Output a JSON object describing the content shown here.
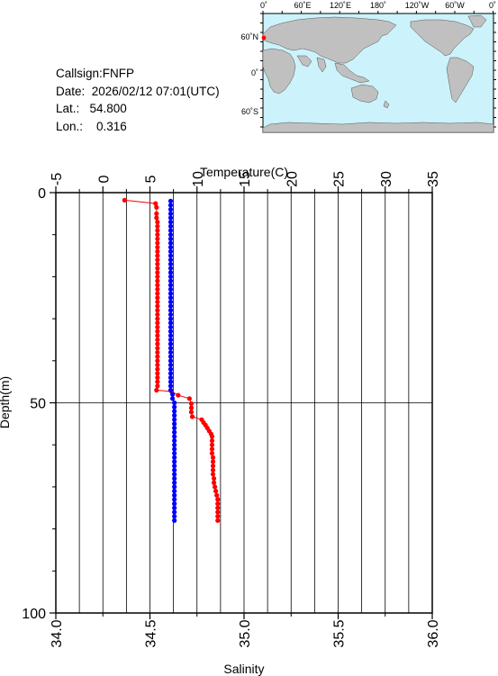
{
  "station": {
    "callsign_line": "Callsign:FNFP",
    "date_line": "Date:  2026/02/12 07:01(UTC)",
    "lat_line": "Lat.:   54.800",
    "lon_line": "Lon.:    0.316"
  },
  "map": {
    "lon_labels": [
      "0˚",
      "60˚E",
      "120˚E",
      "180˚",
      "120˚W",
      "60˚W",
      "0˚"
    ],
    "lat_labels": [
      "60˚N",
      "0˚",
      "60˚S"
    ],
    "ocean_color": "#ccf2fb",
    "land_color": "#c0c0c0",
    "marker_color": "#ff0000"
  },
  "chart_data": {
    "type": "line",
    "top_axis_label": "Temperature(C)",
    "bottom_axis_label": "Salinity",
    "left_axis_label": "Depth(m)",
    "temperature_ticks": [
      "-5",
      "0",
      "5",
      "10",
      "15",
      "20",
      "25",
      "30",
      "35"
    ],
    "salinity_ticks": [
      "34.0",
      "34.5",
      "35.0",
      "35.5",
      "36.0"
    ],
    "depth_ticks": [
      "0",
      "50",
      "100"
    ],
    "temperature_range": [
      -5,
      35
    ],
    "salinity_range": [
      34.0,
      36.0
    ],
    "depth_range": [
      0,
      100
    ],
    "series": [
      {
        "color": "#ff0000",
        "x_axis": "temperature",
        "points": [
          [
            2.3,
            1.8
          ],
          [
            5.6,
            2.6
          ],
          [
            5.7,
            3.5
          ],
          [
            5.7,
            5
          ],
          [
            5.7,
            6
          ],
          [
            5.8,
            7
          ],
          [
            5.8,
            8
          ],
          [
            5.8,
            9
          ],
          [
            5.8,
            10
          ],
          [
            5.8,
            11
          ],
          [
            5.8,
            12
          ],
          [
            5.8,
            13
          ],
          [
            5.8,
            14
          ],
          [
            5.8,
            15
          ],
          [
            5.8,
            16
          ],
          [
            5.8,
            17
          ],
          [
            5.8,
            18
          ],
          [
            5.8,
            19
          ],
          [
            5.8,
            20
          ],
          [
            5.8,
            21
          ],
          [
            5.8,
            22
          ],
          [
            5.8,
            23
          ],
          [
            5.8,
            24
          ],
          [
            5.8,
            25
          ],
          [
            5.8,
            26
          ],
          [
            5.8,
            27
          ],
          [
            5.8,
            28
          ],
          [
            5.8,
            29
          ],
          [
            5.8,
            30
          ],
          [
            5.8,
            31
          ],
          [
            5.8,
            32
          ],
          [
            5.8,
            33
          ],
          [
            5.8,
            34
          ],
          [
            5.8,
            35
          ],
          [
            5.8,
            36
          ],
          [
            5.8,
            37
          ],
          [
            5.8,
            38
          ],
          [
            5.8,
            39
          ],
          [
            5.8,
            40
          ],
          [
            5.8,
            41
          ],
          [
            5.8,
            42
          ],
          [
            5.8,
            43
          ],
          [
            5.8,
            44
          ],
          [
            5.8,
            45
          ],
          [
            5.8,
            46
          ],
          [
            5.7,
            47
          ],
          [
            7.3,
            47.3
          ],
          [
            8.0,
            48.2
          ],
          [
            9.2,
            49.0
          ],
          [
            9.4,
            50.2
          ],
          [
            9.4,
            51.2
          ],
          [
            9.4,
            52.2
          ],
          [
            9.5,
            53.3
          ],
          [
            10.5,
            54.0
          ],
          [
            10.7,
            54.7
          ],
          [
            10.9,
            55.3
          ],
          [
            11.1,
            56.0
          ],
          [
            11.3,
            56.7
          ],
          [
            11.5,
            57.4
          ],
          [
            11.6,
            58.0
          ],
          [
            11.6,
            59.0
          ],
          [
            11.6,
            60.0
          ],
          [
            11.6,
            61.0
          ],
          [
            11.6,
            62.0
          ],
          [
            11.7,
            63.0
          ],
          [
            11.7,
            64.0
          ],
          [
            11.7,
            65.0
          ],
          [
            11.7,
            66.0
          ],
          [
            11.7,
            67.0
          ],
          [
            11.8,
            68.0
          ],
          [
            11.8,
            69.0
          ],
          [
            11.9,
            70.0
          ],
          [
            12.0,
            71.0
          ],
          [
            12.1,
            72.0
          ],
          [
            12.2,
            73.0
          ],
          [
            12.2,
            74.0
          ],
          [
            12.2,
            75.0
          ],
          [
            12.2,
            76.0
          ],
          [
            12.2,
            77.0
          ],
          [
            12.2,
            78.0
          ]
        ]
      },
      {
        "color": "#0000ff",
        "x_axis": "salinity",
        "points": [
          [
            34.61,
            2.0
          ],
          [
            34.61,
            3.0
          ],
          [
            34.61,
            4.0
          ],
          [
            34.61,
            5.0
          ],
          [
            34.61,
            6.0
          ],
          [
            34.61,
            7.0
          ],
          [
            34.61,
            8.0
          ],
          [
            34.61,
            9.0
          ],
          [
            34.61,
            10.0
          ],
          [
            34.61,
            11.0
          ],
          [
            34.61,
            12.0
          ],
          [
            34.61,
            13.0
          ],
          [
            34.61,
            14.0
          ],
          [
            34.61,
            15.0
          ],
          [
            34.61,
            16.0
          ],
          [
            34.61,
            17.0
          ],
          [
            34.61,
            18.0
          ],
          [
            34.61,
            19.0
          ],
          [
            34.61,
            20.0
          ],
          [
            34.61,
            21.0
          ],
          [
            34.61,
            22.0
          ],
          [
            34.61,
            23.0
          ],
          [
            34.61,
            24.0
          ],
          [
            34.61,
            25.0
          ],
          [
            34.61,
            26.0
          ],
          [
            34.61,
            27.0
          ],
          [
            34.61,
            28.0
          ],
          [
            34.61,
            29.0
          ],
          [
            34.61,
            30.0
          ],
          [
            34.61,
            31.0
          ],
          [
            34.61,
            32.0
          ],
          [
            34.61,
            33.0
          ],
          [
            34.61,
            34.0
          ],
          [
            34.61,
            35.0
          ],
          [
            34.61,
            36.0
          ],
          [
            34.61,
            37.0
          ],
          [
            34.61,
            38.0
          ],
          [
            34.61,
            39.0
          ],
          [
            34.61,
            40.0
          ],
          [
            34.61,
            41.0
          ],
          [
            34.61,
            42.0
          ],
          [
            34.61,
            43.0
          ],
          [
            34.61,
            44.0
          ],
          [
            34.61,
            45.0
          ],
          [
            34.61,
            46.0
          ],
          [
            34.61,
            47.0
          ],
          [
            34.62,
            48.0
          ],
          [
            34.62,
            49.0
          ],
          [
            34.63,
            50.0
          ],
          [
            34.63,
            51.0
          ],
          [
            34.63,
            52.0
          ],
          [
            34.63,
            53.0
          ],
          [
            34.63,
            54.0
          ],
          [
            34.63,
            55.0
          ],
          [
            34.63,
            56.0
          ],
          [
            34.63,
            57.0
          ],
          [
            34.63,
            58.0
          ],
          [
            34.63,
            59.0
          ],
          [
            34.63,
            60.0
          ],
          [
            34.63,
            61.0
          ],
          [
            34.63,
            62.0
          ],
          [
            34.63,
            63.0
          ],
          [
            34.63,
            64.0
          ],
          [
            34.63,
            65.0
          ],
          [
            34.63,
            66.0
          ],
          [
            34.63,
            67.0
          ],
          [
            34.63,
            68.0
          ],
          [
            34.63,
            69.0
          ],
          [
            34.63,
            70.0
          ],
          [
            34.63,
            71.0
          ],
          [
            34.63,
            72.0
          ],
          [
            34.63,
            73.0
          ],
          [
            34.63,
            74.0
          ],
          [
            34.63,
            75.0
          ],
          [
            34.63,
            76.0
          ],
          [
            34.63,
            77.0
          ],
          [
            34.63,
            78.0
          ]
        ]
      }
    ],
    "grid": true
  }
}
